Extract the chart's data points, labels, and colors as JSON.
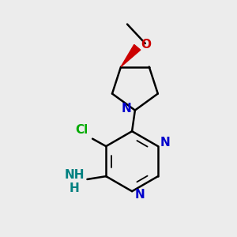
{
  "background_color": "#ececec",
  "bond_color": "#000000",
  "n_color": "#0000cc",
  "o_color": "#cc0000",
  "cl_color": "#00aa00",
  "nh2_color": "#008080",
  "bond_width": 1.8,
  "figsize": [
    3.0,
    3.0
  ],
  "dpi": 100,
  "xlim": [
    -1.3,
    1.3
  ],
  "ylim": [
    -1.6,
    1.5
  ]
}
